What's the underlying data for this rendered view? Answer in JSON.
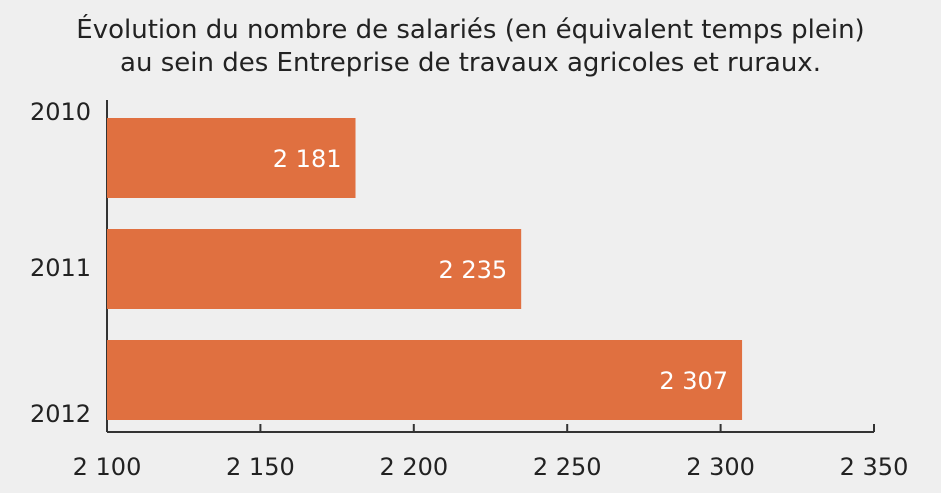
{
  "chart_data": {
    "type": "bar",
    "orientation": "horizontal",
    "title_line1": "Évolution du nombre de salariés (en équivalent temps plein)",
    "title_line2": "au sein des Entreprise de travaux agricoles et ruraux.",
    "categories": [
      "2010",
      "2011",
      "2012"
    ],
    "values": [
      2181,
      2235,
      2307
    ],
    "value_labels": [
      "2 181",
      "2 235",
      "2 307"
    ],
    "xlim": [
      2100,
      2350
    ],
    "x_ticks": [
      2100,
      2150,
      2200,
      2250,
      2300,
      2350
    ],
    "x_tick_labels": [
      "2 100",
      "2 150",
      "2 200",
      "2 250",
      "2 300",
      "2 350"
    ],
    "bar_color": "#e07040",
    "grid": false
  }
}
